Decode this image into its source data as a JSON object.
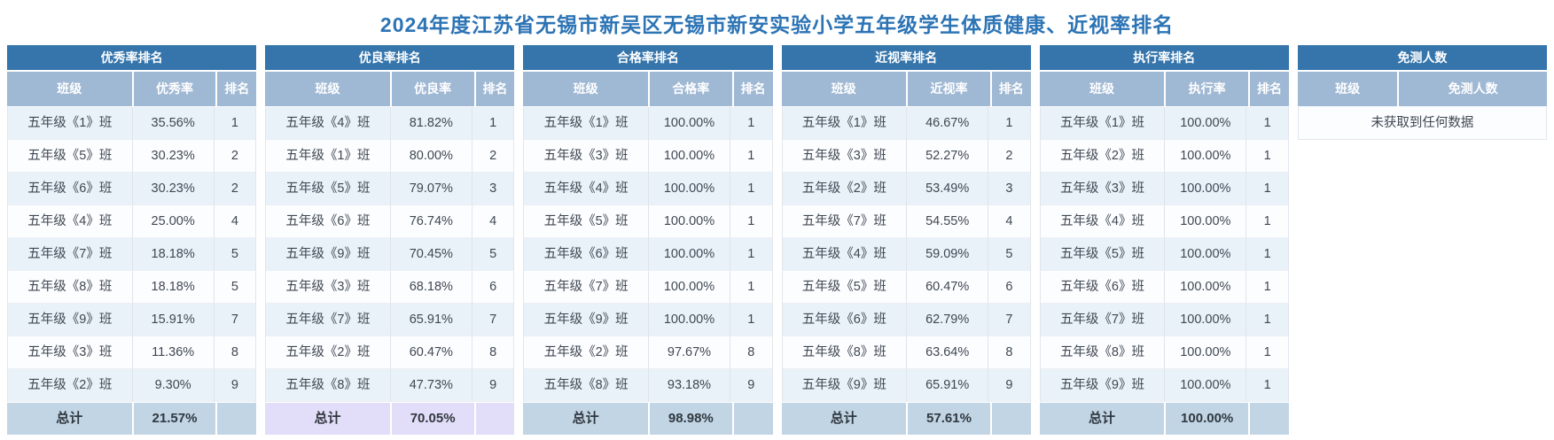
{
  "page_title": "2024年度江苏省无锡市新吴区无锡市新安实验小学五年级学生体质健康、近视率排名",
  "colors": {
    "title_text": "#2d74b5",
    "table_title_bar": "#3575ac",
    "column_header": "#9fb8d4",
    "row_odd": "#e9f1f9",
    "row_even": "#fcfdff",
    "total_row_default": "#c2d5e5",
    "total_row_highlight": "#e2ddf8"
  },
  "tables": [
    {
      "title": "优秀率排名",
      "columns": [
        "班级",
        "优秀率",
        "排名"
      ],
      "rows": [
        [
          "五年级《1》班",
          "35.56%",
          "1"
        ],
        [
          "五年级《5》班",
          "30.23%",
          "2"
        ],
        [
          "五年级《6》班",
          "30.23%",
          "2"
        ],
        [
          "五年级《4》班",
          "25.00%",
          "4"
        ],
        [
          "五年级《7》班",
          "18.18%",
          "5"
        ],
        [
          "五年级《8》班",
          "18.18%",
          "5"
        ],
        [
          "五年级《9》班",
          "15.91%",
          "7"
        ],
        [
          "五年级《3》班",
          "11.36%",
          "8"
        ],
        [
          "五年级《2》班",
          "9.30%",
          "9"
        ]
      ],
      "total_label": "总计",
      "total_value": "21.57%",
      "total_style": "default"
    },
    {
      "title": "优良率排名",
      "columns": [
        "班级",
        "优良率",
        "排名"
      ],
      "rows": [
        [
          "五年级《4》班",
          "81.82%",
          "1"
        ],
        [
          "五年级《1》班",
          "80.00%",
          "2"
        ],
        [
          "五年级《5》班",
          "79.07%",
          "3"
        ],
        [
          "五年级《6》班",
          "76.74%",
          "4"
        ],
        [
          "五年级《9》班",
          "70.45%",
          "5"
        ],
        [
          "五年级《3》班",
          "68.18%",
          "6"
        ],
        [
          "五年级《7》班",
          "65.91%",
          "7"
        ],
        [
          "五年级《2》班",
          "60.47%",
          "8"
        ],
        [
          "五年级《8》班",
          "47.73%",
          "9"
        ]
      ],
      "total_label": "总计",
      "total_value": "70.05%",
      "total_style": "highlight"
    },
    {
      "title": "合格率排名",
      "columns": [
        "班级",
        "合格率",
        "排名"
      ],
      "rows": [
        [
          "五年级《1》班",
          "100.00%",
          "1"
        ],
        [
          "五年级《3》班",
          "100.00%",
          "1"
        ],
        [
          "五年级《4》班",
          "100.00%",
          "1"
        ],
        [
          "五年级《5》班",
          "100.00%",
          "1"
        ],
        [
          "五年级《6》班",
          "100.00%",
          "1"
        ],
        [
          "五年级《7》班",
          "100.00%",
          "1"
        ],
        [
          "五年级《9》班",
          "100.00%",
          "1"
        ],
        [
          "五年级《2》班",
          "97.67%",
          "8"
        ],
        [
          "五年级《8》班",
          "93.18%",
          "9"
        ]
      ],
      "total_label": "总计",
      "total_value": "98.98%",
      "total_style": "default"
    },
    {
      "title": "近视率排名",
      "columns": [
        "班级",
        "近视率",
        "排名"
      ],
      "rows": [
        [
          "五年级《1》班",
          "46.67%",
          "1"
        ],
        [
          "五年级《3》班",
          "52.27%",
          "2"
        ],
        [
          "五年级《2》班",
          "53.49%",
          "3"
        ],
        [
          "五年级《7》班",
          "54.55%",
          "4"
        ],
        [
          "五年级《4》班",
          "59.09%",
          "5"
        ],
        [
          "五年级《5》班",
          "60.47%",
          "6"
        ],
        [
          "五年级《6》班",
          "62.79%",
          "7"
        ],
        [
          "五年级《8》班",
          "63.64%",
          "8"
        ],
        [
          "五年级《9》班",
          "65.91%",
          "9"
        ]
      ],
      "total_label": "总计",
      "total_value": "57.61%",
      "total_style": "default"
    },
    {
      "title": "执行率排名",
      "columns": [
        "班级",
        "执行率",
        "排名"
      ],
      "rows": [
        [
          "五年级《1》班",
          "100.00%",
          "1"
        ],
        [
          "五年级《2》班",
          "100.00%",
          "1"
        ],
        [
          "五年级《3》班",
          "100.00%",
          "1"
        ],
        [
          "五年级《4》班",
          "100.00%",
          "1"
        ],
        [
          "五年级《5》班",
          "100.00%",
          "1"
        ],
        [
          "五年级《6》班",
          "100.00%",
          "1"
        ],
        [
          "五年级《7》班",
          "100.00%",
          "1"
        ],
        [
          "五年级《8》班",
          "100.00%",
          "1"
        ],
        [
          "五年级《9》班",
          "100.00%",
          "1"
        ]
      ],
      "total_label": "总计",
      "total_value": "100.00%",
      "total_style": "default"
    }
  ],
  "empty_table": {
    "title": "免测人数",
    "columns": [
      "班级",
      "免测人数"
    ],
    "empty_message": "未获取到任何数据"
  }
}
